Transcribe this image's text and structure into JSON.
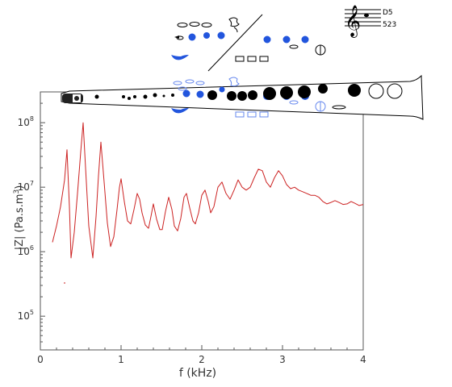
{
  "note": {
    "name": "D5",
    "fingering": "523"
  },
  "chart_data": {
    "type": "line",
    "xlabel": "f (kHz)",
    "ylabel_main": "|Z| (Pa.s.m",
    "ylabel_sup": "3",
    "ylabel_end": ")",
    "xlim": [
      0,
      4
    ],
    "ylim": [
      30000,
      300000000
    ],
    "y_scale": "log",
    "x_ticks": [
      {
        "value": 0,
        "label": "0"
      },
      {
        "value": 1,
        "label": "1"
      },
      {
        "value": 2,
        "label": "2"
      },
      {
        "value": 3,
        "label": "3"
      },
      {
        "value": 4,
        "label": "4"
      }
    ],
    "y_ticks": [
      {
        "value": 100000,
        "base": "10",
        "exp": "5"
      },
      {
        "value": 1000000,
        "base": "10",
        "exp": "6"
      },
      {
        "value": 10000000,
        "base": "10",
        "exp": "7"
      },
      {
        "value": 100000000,
        "base": "10",
        "exp": "8"
      }
    ],
    "series": [
      {
        "color": "#cc2222",
        "x": [
          0.15,
          0.2,
          0.25,
          0.3,
          0.33,
          0.36,
          0.38,
          0.42,
          0.46,
          0.5,
          0.53,
          0.56,
          0.6,
          0.65,
          0.69,
          0.72,
          0.75,
          0.79,
          0.83,
          0.87,
          0.91,
          0.95,
          0.98,
          1.0,
          1.04,
          1.08,
          1.12,
          1.16,
          1.2,
          1.23,
          1.26,
          1.3,
          1.34,
          1.37,
          1.4,
          1.44,
          1.48,
          1.51,
          1.55,
          1.59,
          1.63,
          1.66,
          1.7,
          1.74,
          1.78,
          1.81,
          1.85,
          1.89,
          1.92,
          1.96,
          2.0,
          2.04,
          2.08,
          2.11,
          2.15,
          2.2,
          2.25,
          2.3,
          2.35,
          2.4,
          2.45,
          2.5,
          2.55,
          2.6,
          2.65,
          2.7,
          2.75,
          2.8,
          2.85,
          2.9,
          2.95,
          3.0,
          3.05,
          3.1,
          3.15,
          3.2,
          3.25,
          3.3,
          3.35,
          3.4,
          3.45,
          3.5,
          3.55,
          3.6,
          3.65,
          3.7,
          3.75,
          3.8,
          3.85,
          3.9,
          3.95,
          4.0
        ],
        "y": [
          1400000,
          2500000,
          5000000,
          13000000,
          38000000,
          5000000,
          800000,
          2000000,
          8000000,
          35000000,
          100000000,
          20000000,
          2500000,
          800000,
          3500000,
          15000000,
          50000000,
          12000000,
          2800000,
          1200000,
          1700000,
          4500000,
          10000000,
          13500000,
          6000000,
          3000000,
          2700000,
          4500000,
          8000000,
          6500000,
          4000000,
          2600000,
          2300000,
          3500000,
          5500000,
          3200000,
          2200000,
          2200000,
          4200000,
          7000000,
          4500000,
          2500000,
          2100000,
          3300000,
          7000000,
          8000000,
          4800000,
          3000000,
          2700000,
          4000000,
          7500000,
          9000000,
          6000000,
          4000000,
          5000000,
          10000000,
          12000000,
          8000000,
          6500000,
          9000000,
          13000000,
          10000000,
          9000000,
          10000000,
          14000000,
          19000000,
          18000000,
          12000000,
          10000000,
          14000000,
          18000000,
          15000000,
          11000000,
          9500000,
          10000000,
          9000000,
          8500000,
          8000000,
          7500000,
          7500000,
          7000000,
          6000000,
          5500000,
          5800000,
          6200000,
          5800000,
          5400000,
          5500000,
          6000000,
          5600000,
          5200000,
          5400000
        ]
      }
    ]
  }
}
